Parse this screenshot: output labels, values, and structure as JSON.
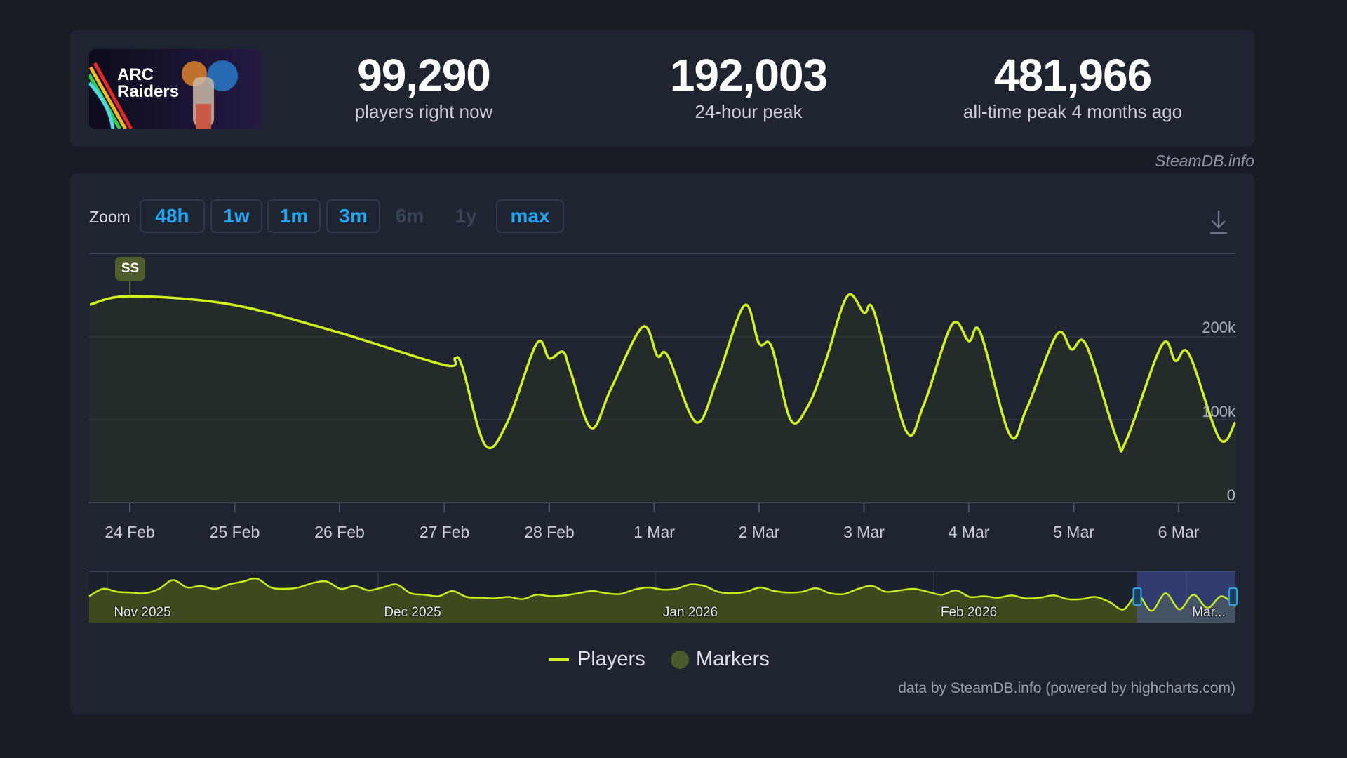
{
  "header": {
    "game_logo_text": "ARC Raiders",
    "stats": [
      {
        "value": "99,290",
        "label": "players right now"
      },
      {
        "value": "192,003",
        "label": "24-hour peak"
      },
      {
        "value": "481,966",
        "label": "all-time peak 4 months ago"
      }
    ],
    "watermark": "SteamDB.info"
  },
  "zoom": {
    "label": "Zoom",
    "buttons": [
      {
        "label": "48h",
        "enabled": true
      },
      {
        "label": "1w",
        "enabled": true
      },
      {
        "label": "1m",
        "enabled": true
      },
      {
        "label": "3m",
        "enabled": true
      },
      {
        "label": "6m",
        "enabled": false
      },
      {
        "label": "1y",
        "enabled": false
      },
      {
        "label": "max",
        "enabled": true
      }
    ],
    "download_icon": "download-icon"
  },
  "chart_data": {
    "type": "area",
    "series": [
      {
        "name": "Players",
        "color": "#d2f21c",
        "x_unit": "days since 24 Feb 00:00",
        "points": [
          [
            -0.38,
            239
          ],
          [
            0,
            249
          ],
          [
            0.97,
            239
          ],
          [
            2.0,
            205
          ],
          [
            3.0,
            166
          ],
          [
            3.1,
            174
          ],
          [
            3.17,
            164
          ],
          [
            3.39,
            69
          ],
          [
            3.6,
            97
          ],
          [
            3.88,
            192
          ],
          [
            4.0,
            174
          ],
          [
            4.13,
            182
          ],
          [
            4.2,
            159
          ],
          [
            4.4,
            90
          ],
          [
            4.59,
            138
          ],
          [
            4.89,
            212
          ],
          [
            5.03,
            177
          ],
          [
            5.13,
            177
          ],
          [
            5.4,
            97
          ],
          [
            5.6,
            149
          ],
          [
            5.86,
            238
          ],
          [
            6.0,
            192
          ],
          [
            6.12,
            188
          ],
          [
            6.3,
            100
          ],
          [
            6.46,
            115
          ],
          [
            6.63,
            169
          ],
          [
            6.84,
            249
          ],
          [
            7.0,
            229
          ],
          [
            7.1,
            229
          ],
          [
            7.4,
            87
          ],
          [
            7.57,
            118
          ],
          [
            7.84,
            215
          ],
          [
            8.0,
            195
          ],
          [
            8.11,
            205
          ],
          [
            8.39,
            82
          ],
          [
            8.55,
            113
          ],
          [
            8.84,
            203
          ],
          [
            8.98,
            185
          ],
          [
            9.12,
            190
          ],
          [
            9.41,
            77
          ],
          [
            9.5,
            75
          ],
          [
            9.84,
            190
          ],
          [
            9.97,
            171
          ],
          [
            10.1,
            179
          ],
          [
            10.39,
            77
          ],
          [
            10.54,
            97
          ]
        ]
      }
    ],
    "y_unit": "thousands of players",
    "ylim": [
      0,
      300
    ],
    "y_ticks": [
      {
        "value": 0,
        "label": "0"
      },
      {
        "value": 100,
        "label": "100k"
      },
      {
        "value": 200,
        "label": "200k"
      }
    ],
    "x_ticks": [
      "24 Feb",
      "25 Feb",
      "26 Feb",
      "27 Feb",
      "28 Feb",
      "1 Mar",
      "2 Mar",
      "3 Mar",
      "4 Mar",
      "5 Mar",
      "6 Mar"
    ],
    "markers": [
      {
        "label": "SS",
        "x": 0
      }
    ],
    "legend": [
      {
        "label": "Players",
        "color": "#d2f21c"
      },
      {
        "label": "Markers",
        "color": "#4a5a2a"
      }
    ],
    "legend_position": "bottom-center",
    "navigator": {
      "labels": [
        "Nov 2025",
        "Dec 2025",
        "Jan 2026",
        "Feb 2026",
        "Mar..."
      ],
      "values": [
        180,
        230,
        210,
        205,
        200,
        230,
        290,
        240,
        250,
        230,
        260,
        280,
        300,
        240,
        230,
        240,
        270,
        280,
        230,
        250,
        220,
        240,
        260,
        200,
        190,
        180,
        215,
        175,
        170,
        165,
        175,
        160,
        190,
        180,
        185,
        200,
        215,
        200,
        195,
        225,
        240,
        225,
        230,
        260,
        250,
        210,
        200,
        210,
        240,
        215,
        205,
        210,
        235,
        200,
        195,
        230,
        250,
        210,
        220,
        230,
        210,
        190,
        220,
        175,
        180,
        170,
        185,
        165,
        170,
        185,
        160,
        160,
        175,
        140,
        90,
        190,
        80,
        200,
        90,
        190,
        100,
        180,
        110
      ],
      "ylim": [
        0,
        350
      ],
      "selected_fraction": [
        0.914,
        1.0
      ]
    }
  },
  "credits": "data by SteamDB.info (powered by highcharts.com)"
}
